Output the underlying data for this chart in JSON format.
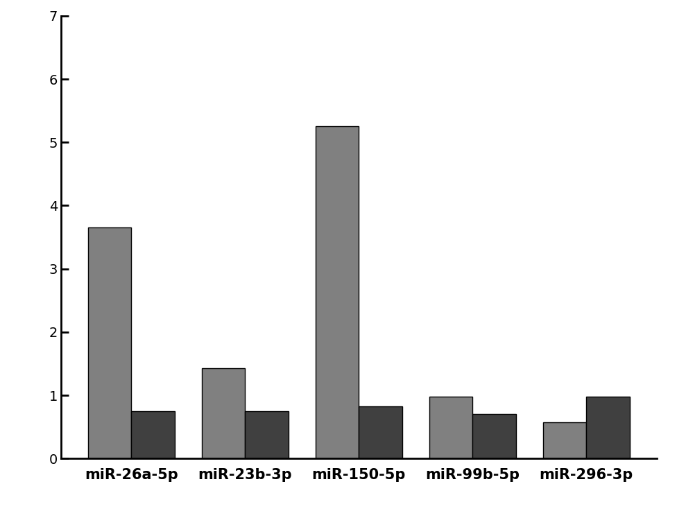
{
  "categories": [
    "miR-26a-5p",
    "miR-23b-3p",
    "miR-150-5p",
    "miR-99b-5p",
    "miR-296-3p"
  ],
  "values_light": [
    3.65,
    1.43,
    5.25,
    0.98,
    0.57
  ],
  "values_dark": [
    0.75,
    0.75,
    0.82,
    0.7,
    0.98
  ],
  "color_light": "#808080",
  "color_dark": "#404040",
  "ylim": [
    0,
    7
  ],
  "yticks": [
    0,
    1,
    2,
    3,
    4,
    5,
    6,
    7
  ],
  "bar_width": 0.38,
  "xlabel_fontsize": 15,
  "tick_fontsize": 14,
  "background_color": "#ffffff"
}
